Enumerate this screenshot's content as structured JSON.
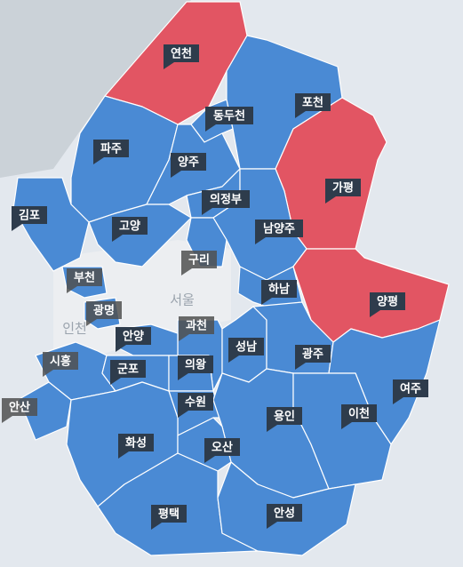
{
  "regions": [
    {
      "name": "연천",
      "color": "#e25563",
      "label_style": "dark"
    },
    {
      "name": "동두천",
      "color": "#4a8ad4",
      "label_style": "dark"
    },
    {
      "name": "포천",
      "color": "#4a8ad4",
      "label_style": "dark"
    },
    {
      "name": "파주",
      "color": "#4a8ad4",
      "label_style": "dark"
    },
    {
      "name": "양주",
      "color": "#4a8ad4",
      "label_style": "dark"
    },
    {
      "name": "가평",
      "color": "#e25563",
      "label_style": "dark"
    },
    {
      "name": "의정부",
      "color": "#4a8ad4",
      "label_style": "dark"
    },
    {
      "name": "김포",
      "color": "#4a8ad4",
      "label_style": "dark"
    },
    {
      "name": "고양",
      "color": "#4a8ad4",
      "label_style": "dark"
    },
    {
      "name": "남양주",
      "color": "#4a8ad4",
      "label_style": "dark"
    },
    {
      "name": "구리",
      "color": "#4a8ad4",
      "label_style": "dim"
    },
    {
      "name": "부천",
      "color": "#4a8ad4",
      "label_style": "dim"
    },
    {
      "name": "하남",
      "color": "#4a8ad4",
      "label_style": "dark"
    },
    {
      "name": "양평",
      "color": "#e25563",
      "label_style": "dark"
    },
    {
      "name": "광명",
      "color": "#4a8ad4",
      "label_style": "dim"
    },
    {
      "name": "과천",
      "color": "#4a8ad4",
      "label_style": "dim"
    },
    {
      "name": "안양",
      "color": "#4a8ad4",
      "label_style": "dark"
    },
    {
      "name": "성남",
      "color": "#4a8ad4",
      "label_style": "dark"
    },
    {
      "name": "시흥",
      "color": "#4a8ad4",
      "label_style": "dim"
    },
    {
      "name": "군포",
      "color": "#4a8ad4",
      "label_style": "dark"
    },
    {
      "name": "의왕",
      "color": "#4a8ad4",
      "label_style": "dark"
    },
    {
      "name": "광주",
      "color": "#4a8ad4",
      "label_style": "dark"
    },
    {
      "name": "여주",
      "color": "#4a8ad4",
      "label_style": "dark"
    },
    {
      "name": "안산",
      "color": "#4a8ad4",
      "label_style": "dim"
    },
    {
      "name": "수원",
      "color": "#4a8ad4",
      "label_style": "dark"
    },
    {
      "name": "용인",
      "color": "#4a8ad4",
      "label_style": "dark"
    },
    {
      "name": "이천",
      "color": "#4a8ad4",
      "label_style": "dark"
    },
    {
      "name": "화성",
      "color": "#4a8ad4",
      "label_style": "dark"
    },
    {
      "name": "오산",
      "color": "#4a8ad4",
      "label_style": "dark"
    },
    {
      "name": "평택",
      "color": "#4a8ad4",
      "label_style": "dark"
    },
    {
      "name": "안성",
      "color": "#4a8ad4",
      "label_style": "dark"
    }
  ],
  "background_labels": [
    "서울",
    "인천"
  ]
}
